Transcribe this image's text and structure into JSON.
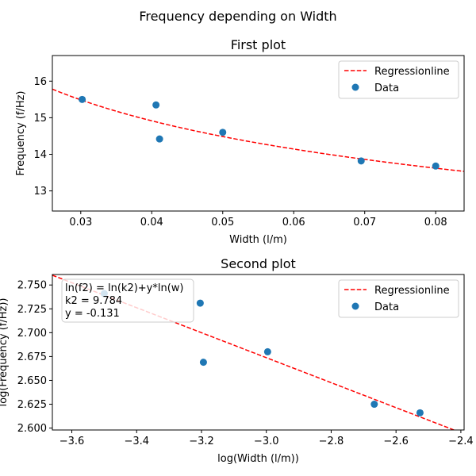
{
  "suptitle": "Frequency depending on Width",
  "chart_data": [
    {
      "type": "scatter",
      "title": "First plot",
      "xlabel": "Width (l/m)",
      "ylabel": "Frequency (f/Hz)",
      "xlim": [
        0.026,
        0.084
      ],
      "ylim": [
        12.45,
        16.7
      ],
      "xticks": [
        0.03,
        0.04,
        0.05,
        0.06,
        0.07,
        0.08
      ],
      "xtick_labels": [
        "0.03",
        "0.04",
        "0.05",
        "0.06",
        "0.07",
        "0.08"
      ],
      "yticks": [
        13,
        14,
        15,
        16
      ],
      "ytick_labels": [
        "13",
        "14",
        "15",
        "16"
      ],
      "series": [
        {
          "name": "Data",
          "kind": "scatter",
          "color": "#1f77b4",
          "x": [
            0.0302,
            0.0406,
            0.0411,
            0.05,
            0.0695,
            0.08
          ],
          "y": [
            15.5,
            15.35,
            14.42,
            14.6,
            13.82,
            13.68
          ]
        },
        {
          "name": "Regressionline",
          "kind": "line",
          "style": "dashed",
          "color": "#ff0000",
          "model": "power",
          "k": 9.784,
          "exponent": -0.131
        }
      ],
      "legend_position": "upper-right"
    },
    {
      "type": "scatter",
      "title": "Second plot",
      "xlabel": "log(Width (l/m))",
      "ylabel": "log(Frequency (f/Hz))",
      "xlim": [
        -3.66,
        -2.39
      ],
      "ylim": [
        2.598,
        2.761
      ],
      "xticks": [
        -3.6,
        -3.4,
        -3.2,
        -3.0,
        -2.8,
        -2.6,
        -2.4
      ],
      "xtick_labels": [
        "−3.6",
        "−3.4",
        "−3.2",
        "−3.0",
        "−2.8",
        "−2.6",
        "−2.4"
      ],
      "yticks": [
        2.6,
        2.625,
        2.65,
        2.675,
        2.7,
        2.725,
        2.75
      ],
      "ytick_labels": [
        "2.600",
        "2.625",
        "2.650",
        "2.675",
        "2.700",
        "2.725",
        "2.750"
      ],
      "series": [
        {
          "name": "Data",
          "kind": "scatter",
          "color": "#1f77b4",
          "x": [
            -3.5,
            -3.204,
            -3.194,
            -2.996,
            -2.667,
            -2.526
          ],
          "y": [
            2.741,
            2.731,
            2.669,
            2.68,
            2.625,
            2.616
          ]
        },
        {
          "name": "Regressionline",
          "kind": "line",
          "style": "dashed",
          "color": "#ff0000",
          "model": "linear",
          "intercept": 2.2808,
          "slope": -0.131
        }
      ],
      "legend_position": "upper-right",
      "annotation": {
        "lines": [
          "ln(f2) = ln(k2)+y*ln(w)",
          "k2 = 9.784",
          "y = -0.131"
        ],
        "position": "upper-left"
      }
    }
  ]
}
